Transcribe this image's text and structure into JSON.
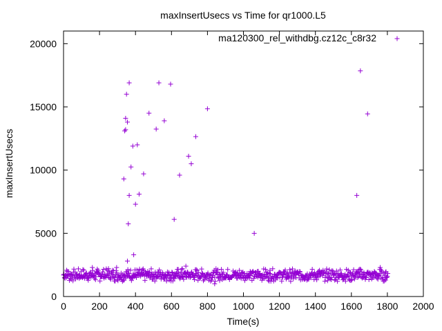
{
  "chart_data": {
    "type": "scatter",
    "title": "maxInsertUsecs vs Time for qr1000.L5",
    "xlabel": "Time(s)",
    "ylabel": "maxInsertUsecs",
    "xlim": [
      0,
      2000
    ],
    "ylim": [
      0,
      21000
    ],
    "x_ticks": [
      "0",
      "200",
      "400",
      "600",
      "800",
      "1000",
      "1200",
      "1400",
      "1600",
      "1800",
      "2000"
    ],
    "y_ticks": [
      "0",
      "5000",
      "10000",
      "15000",
      "20000"
    ],
    "grid": false,
    "legend_position": "top-right",
    "marker": "plus",
    "series": [
      {
        "name": "ma120300_rel_withdbg.cz12c_c8r32",
        "color": "#9400d3",
        "baseline": {
          "x_start": 0,
          "x_end": 1800,
          "x_step": 5,
          "y_min": 1200,
          "y_max": 2200
        },
        "points": [
          [
            20,
            2000
          ],
          [
            160,
            2300
          ],
          [
            250,
            2200
          ],
          [
            295,
            2300
          ],
          [
            335,
            9300
          ],
          [
            340,
            13100
          ],
          [
            345,
            13200
          ],
          [
            345,
            14100
          ],
          [
            350,
            16000
          ],
          [
            355,
            13800
          ],
          [
            355,
            2800
          ],
          [
            360,
            5750
          ],
          [
            365,
            16900
          ],
          [
            365,
            8000
          ],
          [
            375,
            10250
          ],
          [
            385,
            11900
          ],
          [
            390,
            3300
          ],
          [
            400,
            7300
          ],
          [
            410,
            12000
          ],
          [
            420,
            8100
          ],
          [
            445,
            9700
          ],
          [
            475,
            14500
          ],
          [
            515,
            13250
          ],
          [
            530,
            16900
          ],
          [
            560,
            13900
          ],
          [
            595,
            16800
          ],
          [
            615,
            6100
          ],
          [
            645,
            9600
          ],
          [
            660,
            2200
          ],
          [
            680,
            2400
          ],
          [
            695,
            11100
          ],
          [
            710,
            10500
          ],
          [
            735,
            12650
          ],
          [
            800,
            14850
          ],
          [
            840,
            1000
          ],
          [
            1060,
            5000
          ],
          [
            1630,
            8000
          ],
          [
            1650,
            17850
          ],
          [
            1690,
            14450
          ],
          [
            1760,
            2300
          ],
          [
            1790,
            1300
          ]
        ]
      }
    ]
  }
}
